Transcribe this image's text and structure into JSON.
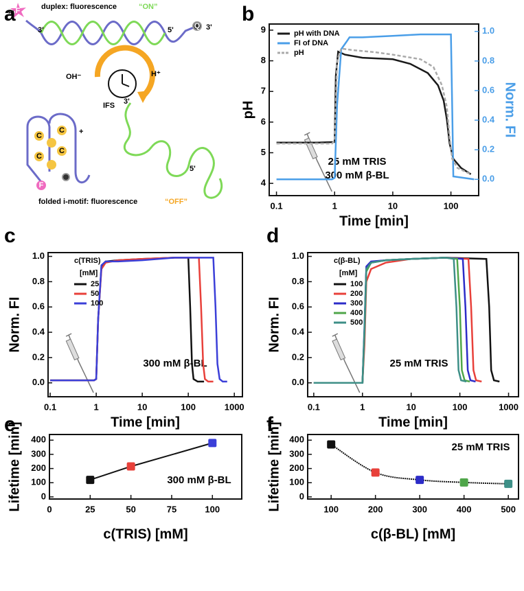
{
  "diagram": {
    "panel_label": "a",
    "duplex_caption": "duplex: fluorescence",
    "on_label": "“ON”",
    "oh_label": "OH⁻",
    "h_label": "H⁺",
    "ifs_label": "IFS",
    "imotif_caption": "folded i-motif: fluorescence",
    "off_label": "“OFF”",
    "fluorophore": "F",
    "quencher": "Q",
    "cytosine": "C",
    "five_prime": "5'",
    "three_prime": "3'",
    "plus": "+"
  },
  "chart_data": [
    {
      "type": "line",
      "panel_label": "b",
      "xlabel": "Time [min]",
      "ylabel": "pH",
      "y2label": "Norm. FI",
      "xscale": "log",
      "xlim": [
        0.075,
        300
      ],
      "xticks": [
        0.1,
        1,
        10,
        100
      ],
      "ylim": [
        3.6,
        9.2
      ],
      "yticks": [
        4,
        5,
        6,
        7,
        8,
        9
      ],
      "y2lim": [
        -0.11,
        1.05
      ],
      "y2ticks": [
        {
          "value": 0,
          "label": "0.0"
        },
        0.2,
        0.4,
        0.6,
        0.8,
        {
          "value": 1,
          "label": "1.0"
        }
      ],
      "legend": "upper left",
      "annotations": [
        "25 mM TRIS",
        "300 mM β-BL"
      ],
      "series": [
        {
          "name": "pH with DNA",
          "color": "#1a1a1a",
          "x": [
            0.1,
            0.5,
            1.0,
            1.05,
            1.15,
            1.5,
            3,
            10,
            20,
            40,
            60,
            75,
            85,
            95,
            110,
            150,
            220
          ],
          "values": [
            5.33,
            5.33,
            5.35,
            7.5,
            8.3,
            8.2,
            8.1,
            8.05,
            7.9,
            7.6,
            7.2,
            6.7,
            6.1,
            5.3,
            4.8,
            4.5,
            4.3
          ]
        },
        {
          "name": "FI of DNA",
          "color": "#4a9ee8",
          "axis": "y2",
          "x": [
            0.1,
            0.9,
            1.0,
            1.1,
            1.3,
            1.6,
            1.8,
            3,
            10,
            30,
            60,
            100,
            105,
            110,
            250
          ],
          "values": [
            0.0,
            0.0,
            0.01,
            0.5,
            0.88,
            0.93,
            0.96,
            0.96,
            0.97,
            0.98,
            0.98,
            0.98,
            0.5,
            0.02,
            0.0
          ]
        },
        {
          "name": "pH",
          "color": "#aaaaaa",
          "dashed": true,
          "x": [
            0.1,
            0.9,
            1.0,
            1.1,
            1.3,
            2,
            5,
            10,
            30,
            50,
            70,
            85,
            95,
            105,
            130,
            220
          ],
          "values": [
            5.3,
            5.3,
            5.4,
            8.0,
            8.4,
            8.35,
            8.28,
            8.2,
            8.05,
            7.8,
            7.2,
            6.5,
            5.5,
            4.8,
            4.5,
            4.3
          ]
        }
      ]
    },
    {
      "type": "line",
      "panel_label": "c",
      "xlabel": "Time [min]",
      "ylabel": "Norm. FI",
      "xscale": "log",
      "xlim": [
        0.09,
        1500
      ],
      "xticks": [
        0.1,
        1,
        10,
        100,
        1000
      ],
      "ylim": [
        -0.11,
        1.03
      ],
      "yticks": [
        {
          "value": 0,
          "label": "0.0"
        },
        0.2,
        0.4,
        0.6,
        0.8,
        {
          "value": 1,
          "label": "1.0"
        }
      ],
      "legend": "upper left",
      "legend_title": "c(TRIS)",
      "legend_unit": "[mM]",
      "annotations": [
        "300 mM β-BL"
      ],
      "series": [
        {
          "name": "25",
          "color": "#111111",
          "x": [
            0.1,
            0.9,
            1.0,
            1.1,
            1.3,
            1.6,
            3,
            10,
            50,
            100,
            110,
            120,
            130,
            160,
            220
          ],
          "values": [
            0.02,
            0.02,
            0.03,
            0.5,
            0.92,
            0.96,
            0.97,
            0.98,
            0.99,
            0.99,
            0.6,
            0.15,
            0.03,
            0.01,
            0.01
          ]
        },
        {
          "name": "50",
          "color": "#e8403a",
          "x": [
            0.1,
            0.9,
            1.0,
            1.1,
            1.3,
            1.6,
            3,
            10,
            50,
            170,
            190,
            210,
            230,
            270,
            350
          ],
          "values": [
            0.02,
            0.02,
            0.03,
            0.5,
            0.9,
            0.95,
            0.97,
            0.98,
            0.99,
            0.99,
            0.6,
            0.15,
            0.03,
            0.01,
            0.01
          ]
        },
        {
          "name": "100",
          "color": "#3b3fd8",
          "x": [
            0.1,
            0.9,
            1.0,
            1.1,
            1.3,
            1.6,
            3,
            10,
            50,
            350,
            390,
            430,
            480,
            560,
            700
          ],
          "values": [
            0.02,
            0.02,
            0.03,
            0.5,
            0.93,
            0.96,
            0.96,
            0.97,
            0.99,
            0.99,
            0.6,
            0.15,
            0.03,
            0.01,
            0.01
          ]
        }
      ]
    },
    {
      "type": "line",
      "panel_label": "d",
      "xlabel": "Time [min]",
      "ylabel": "Norm. FI",
      "xscale": "log",
      "xlim": [
        0.075,
        1600
      ],
      "xticks": [
        0.1,
        1,
        10,
        100,
        1000
      ],
      "ylim": [
        -0.11,
        1.03
      ],
      "yticks": [
        {
          "value": 0,
          "label": "0.0"
        },
        0.2,
        0.4,
        0.6,
        0.8,
        {
          "value": 1,
          "label": "1.0"
        }
      ],
      "legend": "upper left",
      "legend_title": "c(β-BL)",
      "legend_unit": "[mM]",
      "annotations": [
        "25 mM TRIS"
      ],
      "series": [
        {
          "name": "100",
          "color": "#111111",
          "x": [
            0.1,
            1.0,
            1.1,
            1.2,
            1.5,
            3,
            10,
            50,
            350,
            400,
            440,
            500,
            650
          ],
          "values": [
            0.0,
            0.0,
            0.4,
            0.9,
            0.95,
            0.97,
            0.98,
            0.99,
            0.98,
            0.6,
            0.1,
            0.02,
            0.01
          ]
        },
        {
          "name": "200",
          "color": "#e8403a",
          "x": [
            0.1,
            1.0,
            1.1,
            1.2,
            1.5,
            3,
            10,
            50,
            150,
            170,
            190,
            215,
            280
          ],
          "values": [
            0.0,
            0.0,
            0.3,
            0.8,
            0.9,
            0.95,
            0.98,
            0.99,
            0.98,
            0.6,
            0.1,
            0.02,
            0.01
          ]
        },
        {
          "name": "300",
          "color": "#2c2cc8",
          "x": [
            0.1,
            1.0,
            1.1,
            1.2,
            1.5,
            3,
            10,
            50,
            115,
            130,
            145,
            165,
            210
          ],
          "values": [
            0.0,
            0.0,
            0.45,
            0.92,
            0.96,
            0.97,
            0.98,
            0.99,
            0.98,
            0.6,
            0.1,
            0.02,
            0.01
          ]
        },
        {
          "name": "400",
          "color": "#4fa64a",
          "x": [
            0.1,
            1.0,
            1.1,
            1.2,
            1.5,
            3,
            10,
            50,
            88,
            100,
            110,
            125,
            160
          ],
          "values": [
            0.0,
            0.0,
            0.4,
            0.88,
            0.95,
            0.97,
            0.98,
            0.99,
            0.98,
            0.6,
            0.1,
            0.02,
            0.01
          ]
        },
        {
          "name": "500",
          "color": "#3d8f87",
          "x": [
            0.1,
            1.0,
            1.1,
            1.2,
            1.5,
            3,
            10,
            50,
            75,
            85,
            94,
            106,
            136
          ],
          "values": [
            0.0,
            0.0,
            0.42,
            0.9,
            0.95,
            0.97,
            0.98,
            0.99,
            0.98,
            0.6,
            0.1,
            0.02,
            0.01
          ]
        }
      ]
    },
    {
      "type": "scatter",
      "panel_label": "e",
      "xlabel": "c(TRIS) [mM]",
      "ylabel": "Lifetime [min]",
      "xlim": [
        0,
        118
      ],
      "xticks": [
        0,
        25,
        50,
        75,
        100
      ],
      "ylim": [
        -15,
        440
      ],
      "yticks": [
        0,
        100,
        200,
        300,
        400
      ],
      "connect": "straight",
      "line_color": "#111111",
      "annotations": [
        "300 mM β-BL"
      ],
      "x": [
        25,
        50,
        100
      ],
      "values": [
        120,
        215,
        380
      ],
      "colors": [
        "#111111",
        "#e8403a",
        "#3b3fd8"
      ]
    },
    {
      "type": "scatter",
      "panel_label": "f",
      "xlabel": "c(β-BL) [mM]",
      "ylabel": "Lifetime [min]",
      "xlim": [
        47,
        523
      ],
      "xticks": [
        100,
        200,
        300,
        400,
        500
      ],
      "ylim": [
        -15,
        440
      ],
      "yticks": [
        0,
        100,
        200,
        300,
        400
      ],
      "connect": "smooth",
      "line_color": "#111111",
      "annotations": [
        "25 mM TRIS"
      ],
      "x": [
        100,
        200,
        300,
        400,
        500
      ],
      "values": [
        370,
        172,
        120,
        102,
        92
      ],
      "colors": [
        "#111111",
        "#e8403a",
        "#2c2cc8",
        "#4fa64a",
        "#3d8f87"
      ]
    }
  ]
}
